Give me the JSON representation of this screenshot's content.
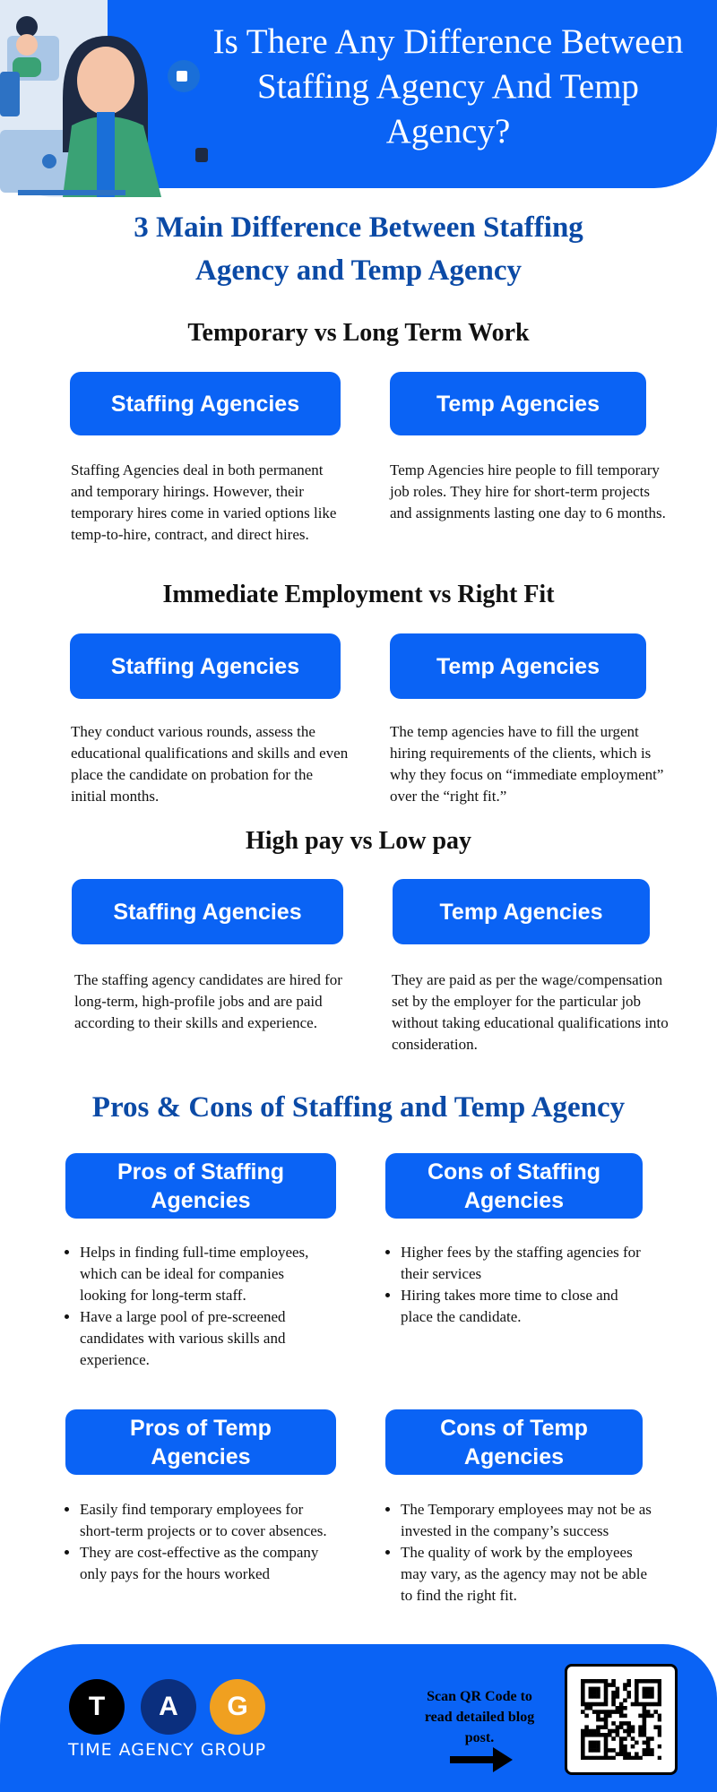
{
  "header": {
    "title": "Is There Any Difference Between Staffing Agency And Temp Agency?"
  },
  "subtitle": "3 Main Difference Between Staffing Agency and Temp Agency",
  "sections": [
    {
      "heading": "Temporary vs Long Term Work",
      "left_label": "Staffing Agencies",
      "right_label": "Temp Agencies",
      "left_text": "Staffing Agencies deal in both permanent and temporary hirings. However, their temporary hires come in varied options like temp-to-hire, contract, and direct hires.",
      "right_text": "Temp Agencies hire people to fill temporary job roles. They hire for short-term projects and assignments lasting one day to 6 months."
    },
    {
      "heading": "Immediate Employment vs Right Fit",
      "left_label": "Staffing Agencies",
      "right_label": "Temp Agencies",
      "left_text": "They conduct various rounds, assess the educational qualifications and skills and even place the candidate on probation for the initial months.",
      "right_text": "The temp agencies have to fill the urgent hiring requirements of the clients, which is why they focus on “immediate employment” over the “right fit.”"
    },
    {
      "heading": "High pay vs Low pay",
      "left_label": "Staffing Agencies",
      "right_label": "Temp Agencies",
      "left_text": "The staffing agency candidates are hired for long-term, high-profile jobs and are paid according to their skills and experience.",
      "right_text": "They are paid as per the wage/compensation set by the employer for the particular job without taking educational qualifications into consideration."
    }
  ],
  "pros_cons": {
    "heading": "Pros & Cons of Staffing and Temp Agency",
    "boxes": [
      {
        "label": "Pros of Staffing Agencies",
        "items": [
          "Helps in finding full-time employees, which can be ideal for companies looking for long-term staff.",
          "Have a large pool of pre-screened candidates with various skills and experience."
        ]
      },
      {
        "label": "Cons of Staffing Agencies",
        "items": [
          "Higher fees by the staffing agencies for their services",
          "Hiring takes more time to close and place the candidate."
        ]
      },
      {
        "label": "Pros of Temp Agencies",
        "items": [
          "Easily find temporary employees for short-term projects or to cover absences.",
          "They are cost-effective as the company only pays for the hours worked"
        ]
      },
      {
        "label": "Cons of Temp Agencies",
        "items": [
          "The Temporary employees may not be as invested in the company’s success",
          "The quality of work by the employees may vary, as the agency may not be able to find the right fit."
        ]
      }
    ]
  },
  "footer": {
    "logo_letters": [
      "T",
      "A",
      "G"
    ],
    "logo_name": "TIME AGENCY GROUP",
    "qr_text": "Scan QR Code to read detailed blog post.",
    "icons": [
      "arrow-right-icon",
      "qr-code-icon"
    ]
  },
  "colors": {
    "primary": "#0a63f5",
    "heading_blue": "#0b4aa6",
    "logo_t": "#000000",
    "logo_a": "#0b2f7e",
    "logo_g": "#f0a020"
  }
}
